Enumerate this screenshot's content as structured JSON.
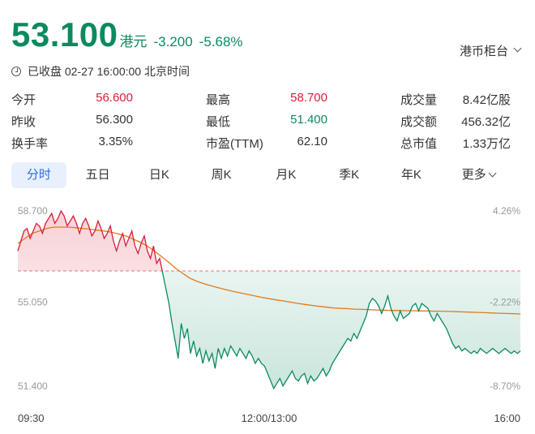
{
  "quote": {
    "price": "53.100",
    "currency": "港元",
    "change": "-3.200",
    "change_pct": "-5.68%",
    "status": "已收盘 02-27 16:00:00 北京时间",
    "exchange_label": "港币柜台"
  },
  "stats": [
    {
      "label": "今开",
      "value": "56.600",
      "color": "red"
    },
    {
      "label": "最高",
      "value": "58.700",
      "color": "red"
    },
    {
      "label": "成交量",
      "value": "8.42亿股",
      "color": "plain"
    },
    {
      "label": "昨收",
      "value": "56.300",
      "color": "plain"
    },
    {
      "label": "最低",
      "value": "51.400",
      "color": "green"
    },
    {
      "label": "成交额",
      "value": "456.32亿",
      "color": "plain"
    },
    {
      "label": "换手率",
      "value": "3.35%",
      "color": "plain"
    },
    {
      "label": "市盈(TTM)",
      "value": "62.10",
      "color": "plain"
    },
    {
      "label": "总市值",
      "value": "1.33万亿",
      "color": "plain"
    }
  ],
  "tabs": [
    "分时",
    "五日",
    "日K",
    "周K",
    "月K",
    "季K",
    "年K",
    "更多"
  ],
  "active_tab": "分时",
  "colors": {
    "up": "#d81e3a",
    "down": "#0c8a5e",
    "avg_line": "#e07a1f",
    "prev_close_line": "#e57373",
    "tab_active_bg": "#e9f0fd",
    "tab_active_text": "#2f6be0"
  },
  "chart_data": {
    "type": "line",
    "ylim": [
      51.4,
      58.7
    ],
    "y_ticks_left": [
      "58.700",
      "55.050",
      "51.400"
    ],
    "y_ticks_right": [
      "4.26%",
      "-2.22%",
      "-8.70%"
    ],
    "x_ticks": [
      "09:30",
      "12:00/13:00",
      "16:00"
    ],
    "prev_close": 56.3,
    "series": [
      {
        "values": [
          57.1,
          57.5,
          57.9,
          58.0,
          57.6,
          57.9,
          58.2,
          58.1,
          57.8,
          58.2,
          58.4,
          58.6,
          58.2,
          58.4,
          58.7,
          58.5,
          58.1,
          58.3,
          58.5,
          58.2,
          57.8,
          58.2,
          58.4,
          58.1,
          57.7,
          57.9,
          58.3,
          58.0,
          57.6,
          57.8,
          58.1,
          57.5,
          57.1,
          57.5,
          57.8,
          57.3,
          57.6,
          57.9,
          57.3,
          57.0,
          57.4,
          57.7,
          57.1,
          56.8,
          57.3,
          56.6,
          56.8,
          56.2,
          55.6,
          55.0,
          54.2,
          53.5,
          52.8,
          54.2,
          53.6,
          54.0,
          53.0,
          53.5,
          52.9,
          53.2,
          52.6,
          53.1,
          52.7,
          53.0,
          52.4,
          53.2,
          52.8,
          53.2,
          52.9,
          53.3,
          53.1,
          52.9,
          53.2,
          53.0,
          52.8,
          53.1,
          52.9,
          52.6,
          52.8,
          52.6,
          52.5,
          52.2,
          51.9,
          51.6,
          51.8,
          52.0,
          51.7,
          51.9,
          52.1,
          52.3,
          52.0,
          51.9,
          52.1,
          52.2,
          51.8,
          52.1,
          51.9,
          52.0,
          52.2,
          52.4,
          52.1,
          52.3,
          52.6,
          52.8,
          53.0,
          53.2,
          53.4,
          53.6,
          53.5,
          53.8,
          53.6,
          53.9,
          54.2,
          54.5,
          55.0,
          55.2,
          55.1,
          54.9,
          54.6,
          54.9,
          55.3,
          54.8,
          54.5,
          54.3,
          54.7,
          54.4,
          54.5,
          54.6,
          54.9,
          55.0,
          54.7,
          55.0,
          54.9,
          54.8,
          54.5,
          54.3,
          54.6,
          54.4,
          54.2,
          54.0,
          53.7,
          53.4,
          53.2,
          53.3,
          53.1,
          53.2,
          53.1,
          53.0,
          53.1,
          53.0,
          53.2,
          53.1,
          53.0,
          53.1,
          53.2,
          53.1,
          53.0,
          53.1,
          53.2,
          53.1,
          53.0,
          53.1,
          53.0,
          53.1
        ],
        "unit": "HKD"
      },
      {
        "values": [
          57.4,
          57.6,
          57.8,
          57.9,
          58.0,
          58.05,
          58.05,
          58.05,
          58.03,
          58.0,
          57.97,
          57.93,
          57.9,
          57.85,
          57.78,
          57.7,
          57.58,
          57.45,
          57.3,
          57.1,
          56.88,
          56.65,
          56.4,
          56.2,
          56.0,
          55.88,
          55.78,
          55.7,
          55.62,
          55.55,
          55.48,
          55.42,
          55.36,
          55.3,
          55.24,
          55.19,
          55.14,
          55.1,
          55.05,
          55.0,
          54.96,
          54.92,
          54.88,
          54.85,
          54.82,
          54.8,
          54.79,
          54.77,
          54.76,
          54.75,
          54.74,
          54.73,
          54.72,
          54.72,
          54.71,
          54.71,
          54.7,
          54.7,
          54.69,
          54.69,
          54.68,
          54.67,
          54.66,
          54.65,
          54.64,
          54.63,
          54.62,
          54.61,
          54.6,
          54.59,
          54.58
        ]
      }
    ]
  }
}
